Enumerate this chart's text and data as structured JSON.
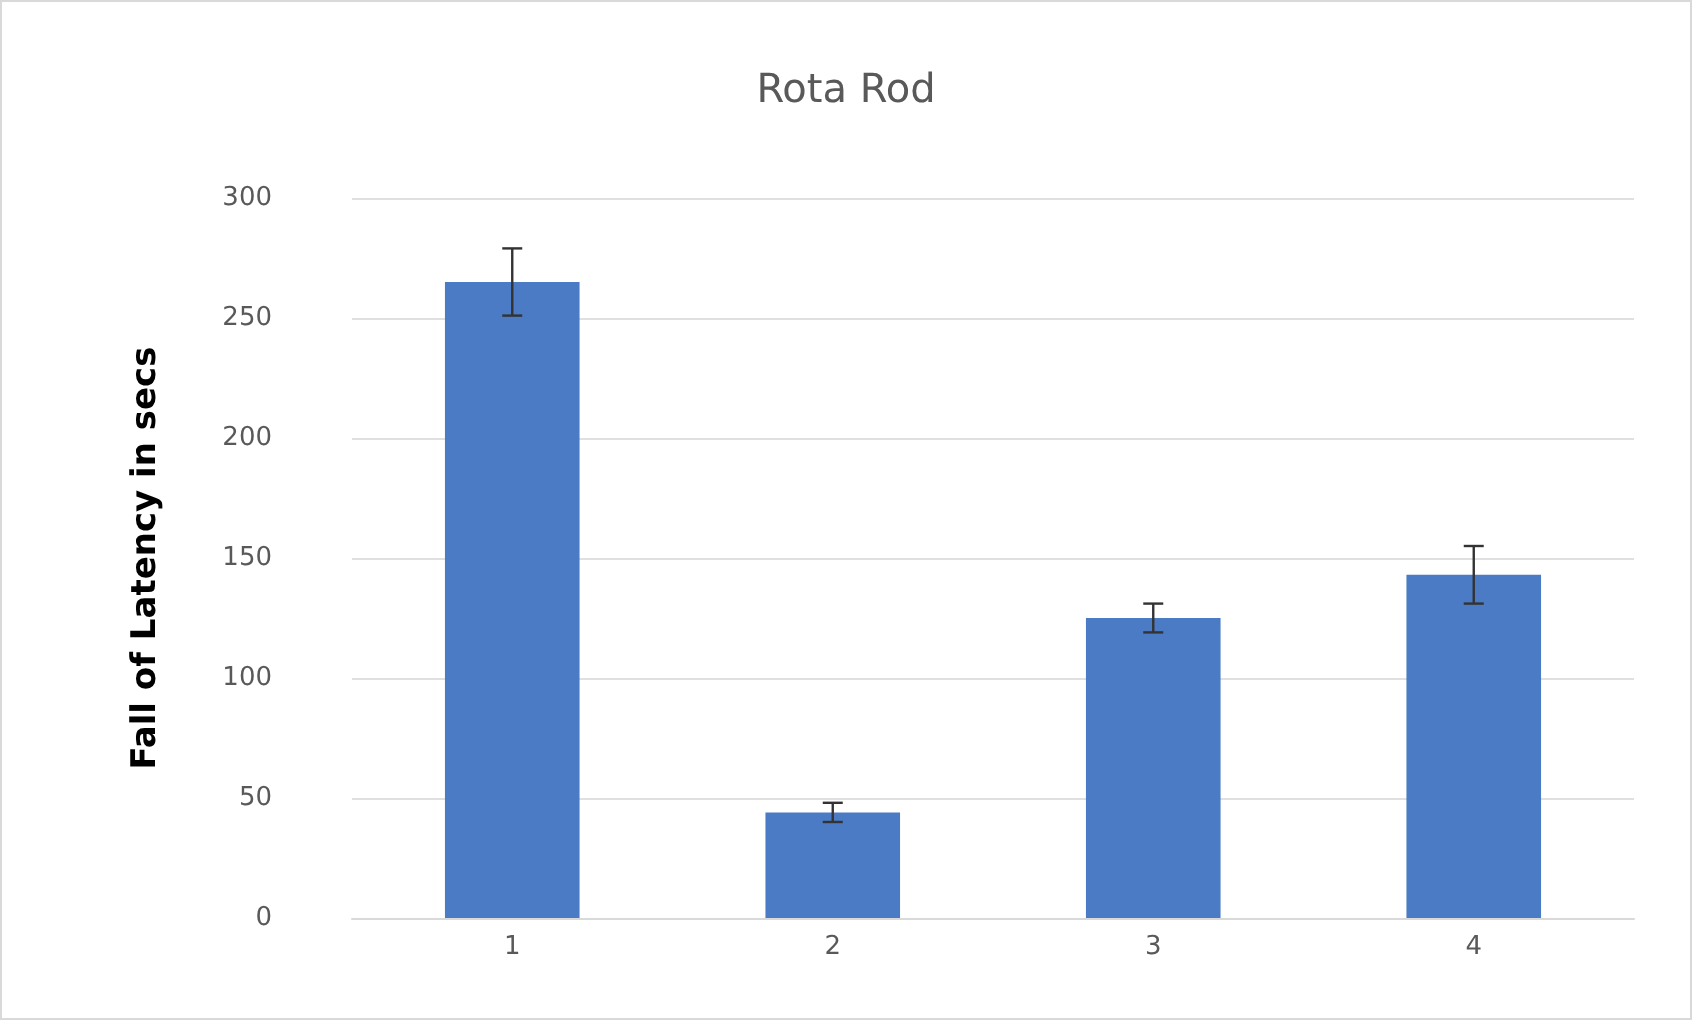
{
  "chart_data": {
    "type": "bar",
    "title": "Rota Rod",
    "ylabel": "Fall of Latency in secs",
    "categories": [
      "1",
      "2",
      "3",
      "4"
    ],
    "values": [
      265,
      44,
      125,
      143
    ],
    "errors": [
      14,
      4,
      6,
      12
    ],
    "color": "#4a7bc4",
    "ylim": [
      0,
      300
    ],
    "yticks": [
      0,
      50,
      100,
      150,
      200,
      250,
      300
    ],
    "grid": "y"
  }
}
